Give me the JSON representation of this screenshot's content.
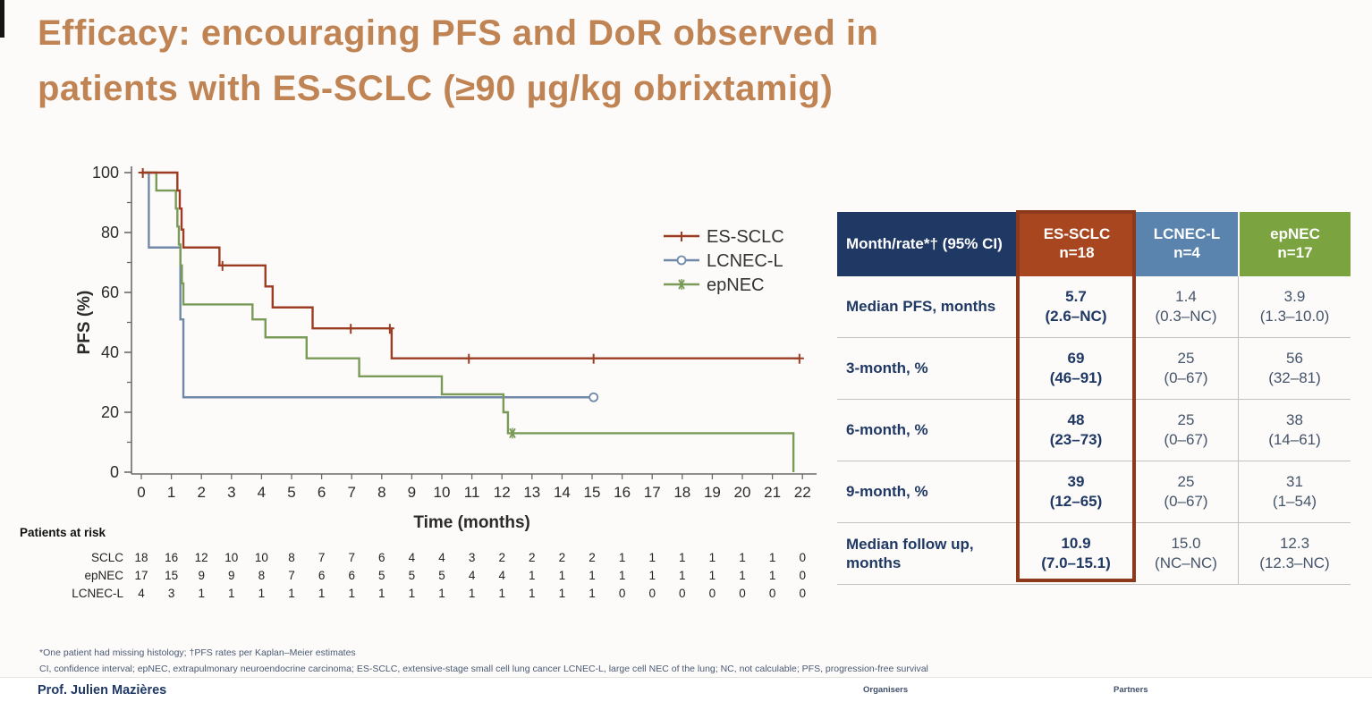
{
  "slide": {
    "title_line1": "Efficacy: encouraging PFS and DoR observed in",
    "title_line2": "patients with ES-SCLC (≥90 µg/kg obrixtamig)",
    "presenter": "Prof. Julien Mazières",
    "organisers_label": "Organisers",
    "partners_label": "Partners",
    "footnote_line1": "*One patient had missing histology; †PFS rates per Kaplan–Meier estimates",
    "footnote_line2": "CI, confidence interval; epNEC, extrapulmonary neuroendocrine carcinoma; ES-SCLC, extensive-stage small cell lung cancer LCNEC-L, large cell NEC of the lung; NC, not calculable; PFS, progression-free survival",
    "colors": {
      "title": "#c08454",
      "header_label": "#1f3864",
      "header_es_sclc": "#a84620",
      "header_lcnec": "#5a83ad",
      "header_epnec": "#7ba33f",
      "es_column_frame": "#8c3a1b"
    }
  },
  "chart_data": {
    "type": "line",
    "subtype": "kaplan-meier-step",
    "title": "",
    "xlabel": "Time (months)",
    "ylabel": "PFS (%)",
    "xlim": [
      0,
      22
    ],
    "ylim": [
      0,
      100
    ],
    "x_ticks": [
      0,
      1,
      2,
      3,
      4,
      5,
      6,
      7,
      8,
      9,
      10,
      11,
      12,
      13,
      14,
      15,
      16,
      17,
      18,
      19,
      20,
      21,
      22
    ],
    "y_ticks_major": [
      0,
      20,
      40,
      60,
      80,
      100
    ],
    "y_ticks_minor": [
      10,
      30,
      50,
      70,
      90
    ],
    "grid": false,
    "legend_position": "upper-right-inside",
    "series": [
      {
        "name": "ES-SCLC",
        "color": "#9c3d23",
        "marker": "plus",
        "steps": [
          [
            0,
            100
          ],
          [
            1.2,
            94
          ],
          [
            1.28,
            88
          ],
          [
            1.34,
            81
          ],
          [
            1.4,
            75
          ],
          [
            2.6,
            69
          ],
          [
            4.13,
            62
          ],
          [
            4.37,
            55
          ],
          [
            5.7,
            48
          ],
          [
            8.33,
            38
          ],
          [
            21.9,
            38
          ]
        ],
        "censors": [
          [
            0.05,
            100
          ],
          [
            2.7,
            69
          ],
          [
            6.97,
            48
          ],
          [
            8.27,
            48
          ],
          [
            10.9,
            38
          ],
          [
            15.05,
            38
          ],
          [
            21.9,
            38
          ]
        ]
      },
      {
        "name": "LCNEC-L",
        "color": "#7089a8",
        "marker": "circle",
        "steps": [
          [
            0,
            100
          ],
          [
            0.25,
            75
          ],
          [
            1.3,
            51
          ],
          [
            1.4,
            25
          ],
          [
            15.05,
            25
          ]
        ],
        "censors": [
          [
            15.05,
            25
          ]
        ]
      },
      {
        "name": "epNEC",
        "color": "#7a9a58",
        "marker": "asterisk",
        "steps": [
          [
            0,
            100
          ],
          [
            0.5,
            94
          ],
          [
            1.15,
            88
          ],
          [
            1.2,
            82
          ],
          [
            1.25,
            76
          ],
          [
            1.3,
            69
          ],
          [
            1.35,
            63
          ],
          [
            1.4,
            56
          ],
          [
            3.7,
            51
          ],
          [
            4.13,
            45
          ],
          [
            5.5,
            38
          ],
          [
            7.25,
            32
          ],
          [
            10.0,
            26
          ],
          [
            12.05,
            20
          ],
          [
            12.2,
            13
          ],
          [
            21.7,
            0
          ]
        ],
        "censors": [
          [
            12.35,
            13
          ]
        ]
      }
    ],
    "risk_table": {
      "title": "Patients at risk",
      "time_points": [
        0,
        1,
        2,
        3,
        4,
        5,
        6,
        7,
        8,
        9,
        10,
        11,
        12,
        13,
        14,
        15,
        16,
        17,
        18,
        19,
        20,
        21,
        22
      ],
      "rows": [
        {
          "label": "SCLC",
          "values": [
            18,
            16,
            12,
            10,
            10,
            8,
            7,
            7,
            6,
            4,
            4,
            3,
            2,
            2,
            2,
            2,
            1,
            1,
            1,
            1,
            1,
            1,
            0
          ]
        },
        {
          "label": "epNEC",
          "values": [
            17,
            15,
            9,
            9,
            8,
            7,
            6,
            6,
            5,
            5,
            5,
            4,
            4,
            1,
            1,
            1,
            1,
            1,
            1,
            1,
            1,
            1,
            0
          ]
        },
        {
          "label": "LCNEC-L",
          "values": [
            4,
            3,
            1,
            1,
            1,
            1,
            1,
            1,
            1,
            1,
            1,
            1,
            1,
            1,
            1,
            1,
            0,
            0,
            0,
            0,
            0,
            0,
            0
          ]
        }
      ]
    }
  },
  "table": {
    "header": [
      {
        "label": "Month/rate*† (95% CI)"
      },
      {
        "label": "ES-SCLC",
        "n": "n=18"
      },
      {
        "label": "LCNEC-L",
        "n": "n=4"
      },
      {
        "label": "epNEC",
        "n": "n=17"
      }
    ],
    "rows": [
      {
        "label": "Median PFS, months",
        "cells": [
          {
            "v": "5.7",
            "ci": "(2.6–NC)"
          },
          {
            "v": "1.4",
            "ci": "(0.3–NC)"
          },
          {
            "v": "3.9",
            "ci": "(1.3–10.0)"
          }
        ]
      },
      {
        "label": "3-month, %",
        "cells": [
          {
            "v": "69",
            "ci": "(46–91)"
          },
          {
            "v": "25",
            "ci": "(0–67)"
          },
          {
            "v": "56",
            "ci": "(32–81)"
          }
        ]
      },
      {
        "label": "6-month, %",
        "cells": [
          {
            "v": "48",
            "ci": "(23–73)"
          },
          {
            "v": "25",
            "ci": "(0–67)"
          },
          {
            "v": "38",
            "ci": "(14–61)"
          }
        ]
      },
      {
        "label": "9-month, %",
        "cells": [
          {
            "v": "39",
            "ci": "(12–65)"
          },
          {
            "v": "25",
            "ci": "(0–67)"
          },
          {
            "v": "31",
            "ci": "(1–54)"
          }
        ]
      },
      {
        "label": "Median follow up, months",
        "cells": [
          {
            "v": "10.9",
            "ci": "(7.0–15.1)"
          },
          {
            "v": "15.0",
            "ci": "(NC–NC)"
          },
          {
            "v": "12.3",
            "ci": "(12.3–NC)"
          }
        ]
      }
    ]
  }
}
